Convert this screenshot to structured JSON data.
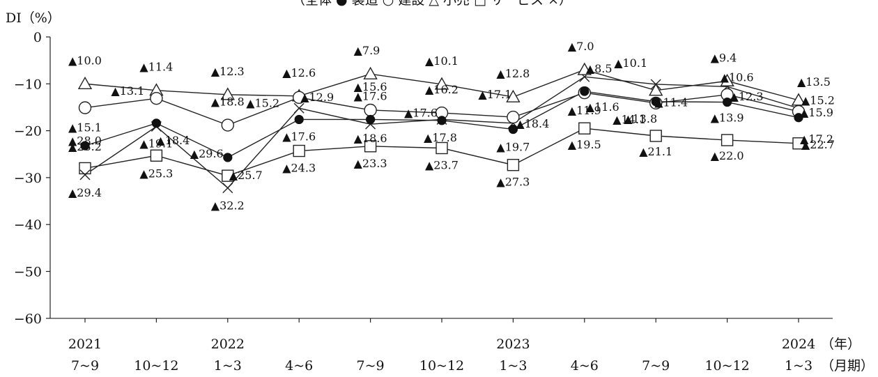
{
  "chart_data": {
    "type": "line",
    "ylabel": "DI（%）",
    "ylim": [
      -60,
      0
    ],
    "yticks": [
      0,
      -10,
      -20,
      -30,
      -40,
      -50,
      -60
    ],
    "ytick_labels": [
      "0",
      "−10",
      "−20",
      "−30",
      "−40",
      "−50",
      "−60"
    ],
    "categories": [
      {
        "year": "2021",
        "period": "7~9"
      },
      {
        "year": "",
        "period": "10~12"
      },
      {
        "year": "2022",
        "period": "1~3"
      },
      {
        "year": "",
        "period": "4~6"
      },
      {
        "year": "",
        "period": "7~9"
      },
      {
        "year": "",
        "period": "10~12"
      },
      {
        "year": "2023",
        "period": "1~3"
      },
      {
        "year": "",
        "period": "4~6"
      },
      {
        "year": "",
        "period": "7~9"
      },
      {
        "year": "",
        "period": "10~12"
      },
      {
        "year": "2024",
        "period": "1~3"
      }
    ],
    "year_unit": "（年）",
    "period_unit": "（月期）",
    "legend_text": "（全体 ●  製造 ○  建設 △  小売 □  サービス ×）",
    "series": [
      {
        "key": "all",
        "name": "全体",
        "marker": "filled-circle",
        "values": [
          -23.2,
          -18.4,
          -25.7,
          -17.6,
          -17.6,
          -17.8,
          -19.7,
          -11.6,
          -13.8,
          -13.9,
          -17.2
        ],
        "labels": [
          "▲23.2",
          "▲18.4",
          "▲25.7",
          "▲17.6",
          "▲17.6",
          "▲17.8",
          "▲19.7",
          "▲11.6",
          "▲13.8",
          "▲13.9",
          "▲17.2"
        ]
      },
      {
        "key": "manufacturing",
        "name": "製造",
        "marker": "open-circle",
        "values": [
          -15.1,
          -13.1,
          -18.8,
          -12.9,
          -15.6,
          -16.2,
          -17.1,
          -11.9,
          -14.1,
          -12.3,
          -15.9
        ],
        "labels": [
          "▲15.1",
          "▲13.1",
          "▲18.8",
          "▲12.9",
          "▲15.6",
          "▲16.2",
          "▲17.1",
          "▲11.9",
          "▲14.1",
          "▲12.3",
          "▲15.9"
        ]
      },
      {
        "key": "construction",
        "name": "建設",
        "marker": "open-triangle",
        "values": [
          -10.0,
          -11.4,
          -12.3,
          -12.6,
          -7.9,
          -10.1,
          -12.8,
          -7.0,
          -11.4,
          -9.4,
          -13.5
        ],
        "labels": [
          "▲10.0",
          "▲11.4",
          "▲12.3",
          "▲12.6",
          "▲7.9",
          "▲10.1",
          "▲12.8",
          "▲7.0",
          "▲11.4",
          "▲9.4",
          "▲13.5"
        ]
      },
      {
        "key": "retail",
        "name": "小売",
        "marker": "open-square",
        "values": [
          -28.0,
          -25.3,
          -29.6,
          -24.3,
          -23.3,
          -23.7,
          -27.3,
          -19.5,
          -21.1,
          -22.0,
          -22.7
        ],
        "labels": [
          "▲28.0",
          "▲25.3",
          "▲29.6",
          "▲24.3",
          "▲23.3",
          "▲23.7",
          "▲27.3",
          "▲19.5",
          "▲21.1",
          "▲22.0",
          "▲22.7"
        ]
      },
      {
        "key": "service",
        "name": "サービス",
        "marker": "cross",
        "values": [
          -29.4,
          -19.1,
          -32.2,
          -15.2,
          -18.6,
          -17.6,
          -18.4,
          -8.5,
          -10.1,
          -10.6,
          -15.2
        ],
        "labels": [
          "▲29.4",
          "▲19.1",
          "▲32.2",
          "▲15.2",
          "▲18.6",
          "▲17.6",
          "▲18.4",
          "▲8.5",
          "▲10.1",
          "▲10.6",
          "▲15.2"
        ]
      }
    ]
  }
}
